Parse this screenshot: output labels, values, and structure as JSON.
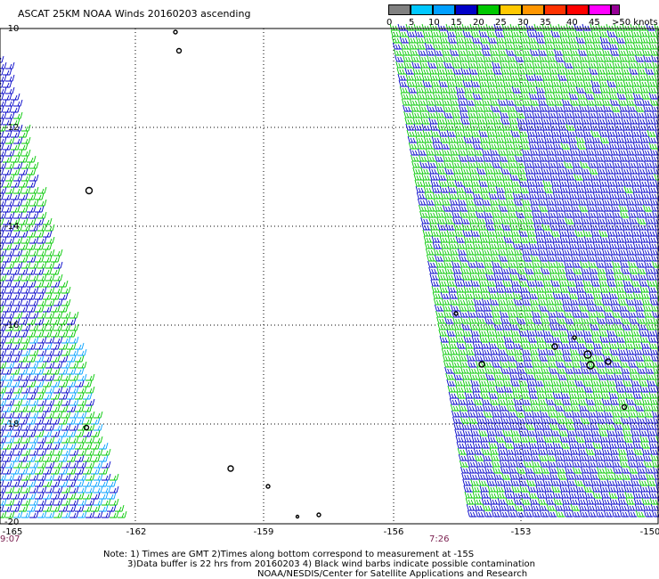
{
  "title": "ASCAT 25KM NOAA Winds 20160203 ascending",
  "scale": {
    "labels": [
      "0",
      "5",
      "10",
      "15",
      "20",
      "25",
      "30",
      "35",
      "40",
      "45",
      ">50 knots"
    ],
    "colors": [
      "#808080",
      "#00c8ff",
      "#00a0ff",
      "#0000c8",
      "#00c800",
      "#ffc800",
      "#ff9600",
      "#ff3200",
      "#ff0000",
      "#ff00ff",
      "#960096"
    ]
  },
  "axes": {
    "lat_labels": [
      "-10",
      "-12",
      "-14",
      "-16",
      "-18",
      "-20"
    ],
    "lon_labels": [
      "-165",
      "-162",
      "-159",
      "-156",
      "-153",
      "-150"
    ]
  },
  "times": [
    "9:07",
    "7:26"
  ],
  "notes": {
    "line1": "Note: 1) Times are GMT 2)Times along bottom correspond to measurement at -15S",
    "line2": "3)Data buffer is 22 hrs from 20160203 4) Black wind barbs indicate possible contamination",
    "line3": "NOAA/NESDIS/Center for Satellite Applications and Research"
  }
}
